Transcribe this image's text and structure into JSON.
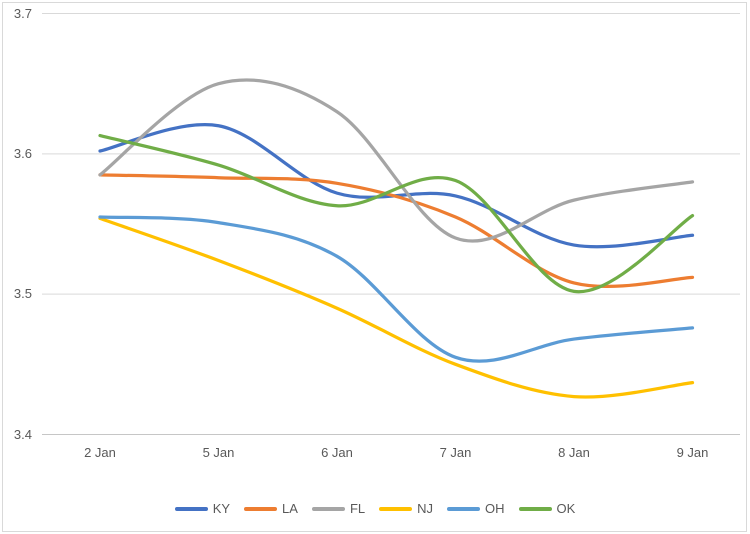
{
  "chart_data": {
    "type": "line",
    "smooth": true,
    "title": "",
    "xlabel": "",
    "ylabel": "",
    "categories": [
      "2 Jan",
      "5 Jan",
      "6 Jan",
      "7 Jan",
      "8 Jan",
      "9 Jan"
    ],
    "series": [
      {
        "name": "KY",
        "color": "#4472C4",
        "values": [
          3.602,
          3.62,
          3.572,
          3.57,
          3.535,
          3.542
        ]
      },
      {
        "name": "LA",
        "color": "#ED7D31",
        "values": [
          3.585,
          3.583,
          3.579,
          3.555,
          3.508,
          3.512
        ]
      },
      {
        "name": "FL",
        "color": "#A5A5A5",
        "values": [
          3.585,
          3.65,
          3.63,
          3.54,
          3.567,
          3.58
        ]
      },
      {
        "name": "NJ",
        "color": "#FFC000",
        "values": [
          3.554,
          3.524,
          3.49,
          3.45,
          3.427,
          3.437
        ]
      },
      {
        "name": "OH",
        "color": "#5B9BD5",
        "values": [
          3.555,
          3.551,
          3.527,
          3.455,
          3.468,
          3.476
        ]
      },
      {
        "name": "OK",
        "color": "#70AD47",
        "values": [
          3.613,
          3.592,
          3.563,
          3.581,
          3.502,
          3.556
        ]
      }
    ],
    "ylim": [
      3.4,
      3.7
    ],
    "y_ticks": [
      3.7,
      3.6,
      3.5,
      3.4
    ],
    "y_tick_labels": [
      "3.7",
      "3.6",
      "3.5",
      "3.4"
    ],
    "grid": "horizontal",
    "legend_position": "bottom-center",
    "colors": {
      "background": "#FFFFFF",
      "border": "#D9D9D9",
      "gridline": "#D9D9D9",
      "axis_line": "#C6C6C6",
      "tick_text": "#595959",
      "legend_text": "#595959"
    }
  }
}
